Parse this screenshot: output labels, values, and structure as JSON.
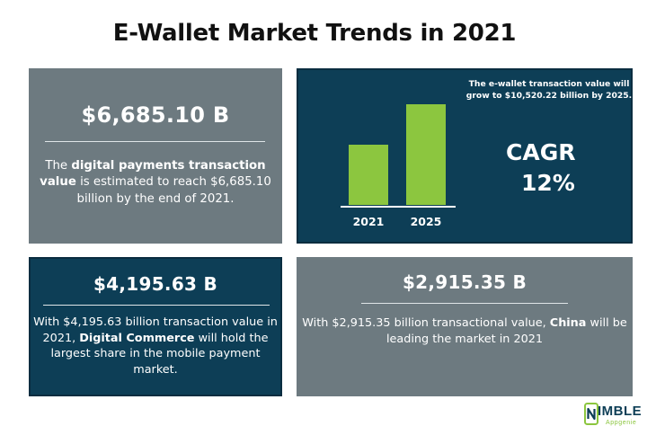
{
  "page": {
    "title": "E-Wallet Market Trends in 2021"
  },
  "cards": {
    "digital_payments": {
      "amount": "$6,685.10 B",
      "text_1": "The ",
      "bold_1": "digital payments transaction value",
      "text_2": " is estimated to reach $6,685.10 billion by the end of 2021.",
      "background": "#6d7a80"
    },
    "ewallet_growth": {
      "note": "The e-wallet transaction value will grow to $10,520.22 billion by 2025.",
      "cagr_label": "CAGR",
      "cagr_value": "12%",
      "background": "#0d3e56",
      "bar_color": "#8cc63f",
      "bars": [
        {
          "label": "2021",
          "value": 0.6
        },
        {
          "label": "2025",
          "value": 1.0
        }
      ]
    },
    "digital_commerce": {
      "amount": "$4,195.63 B",
      "text_1": "With $4,195.63 billion transaction value in 2021, ",
      "bold_1": "Digital Commerce",
      "text_2": " will hold the largest share in the mobile payment market.",
      "background": "#0d3e56"
    },
    "china": {
      "amount": "$2,915.35 B",
      "text_1": "With $2,915.35 billion transactional value, ",
      "bold_1": "China",
      "text_2": " will be leading the market in 2021",
      "background": "#6d7a80"
    }
  },
  "logo": {
    "main": "IMBLE",
    "sub": "Appgenie",
    "icon": "phone-n-logo-icon"
  }
}
